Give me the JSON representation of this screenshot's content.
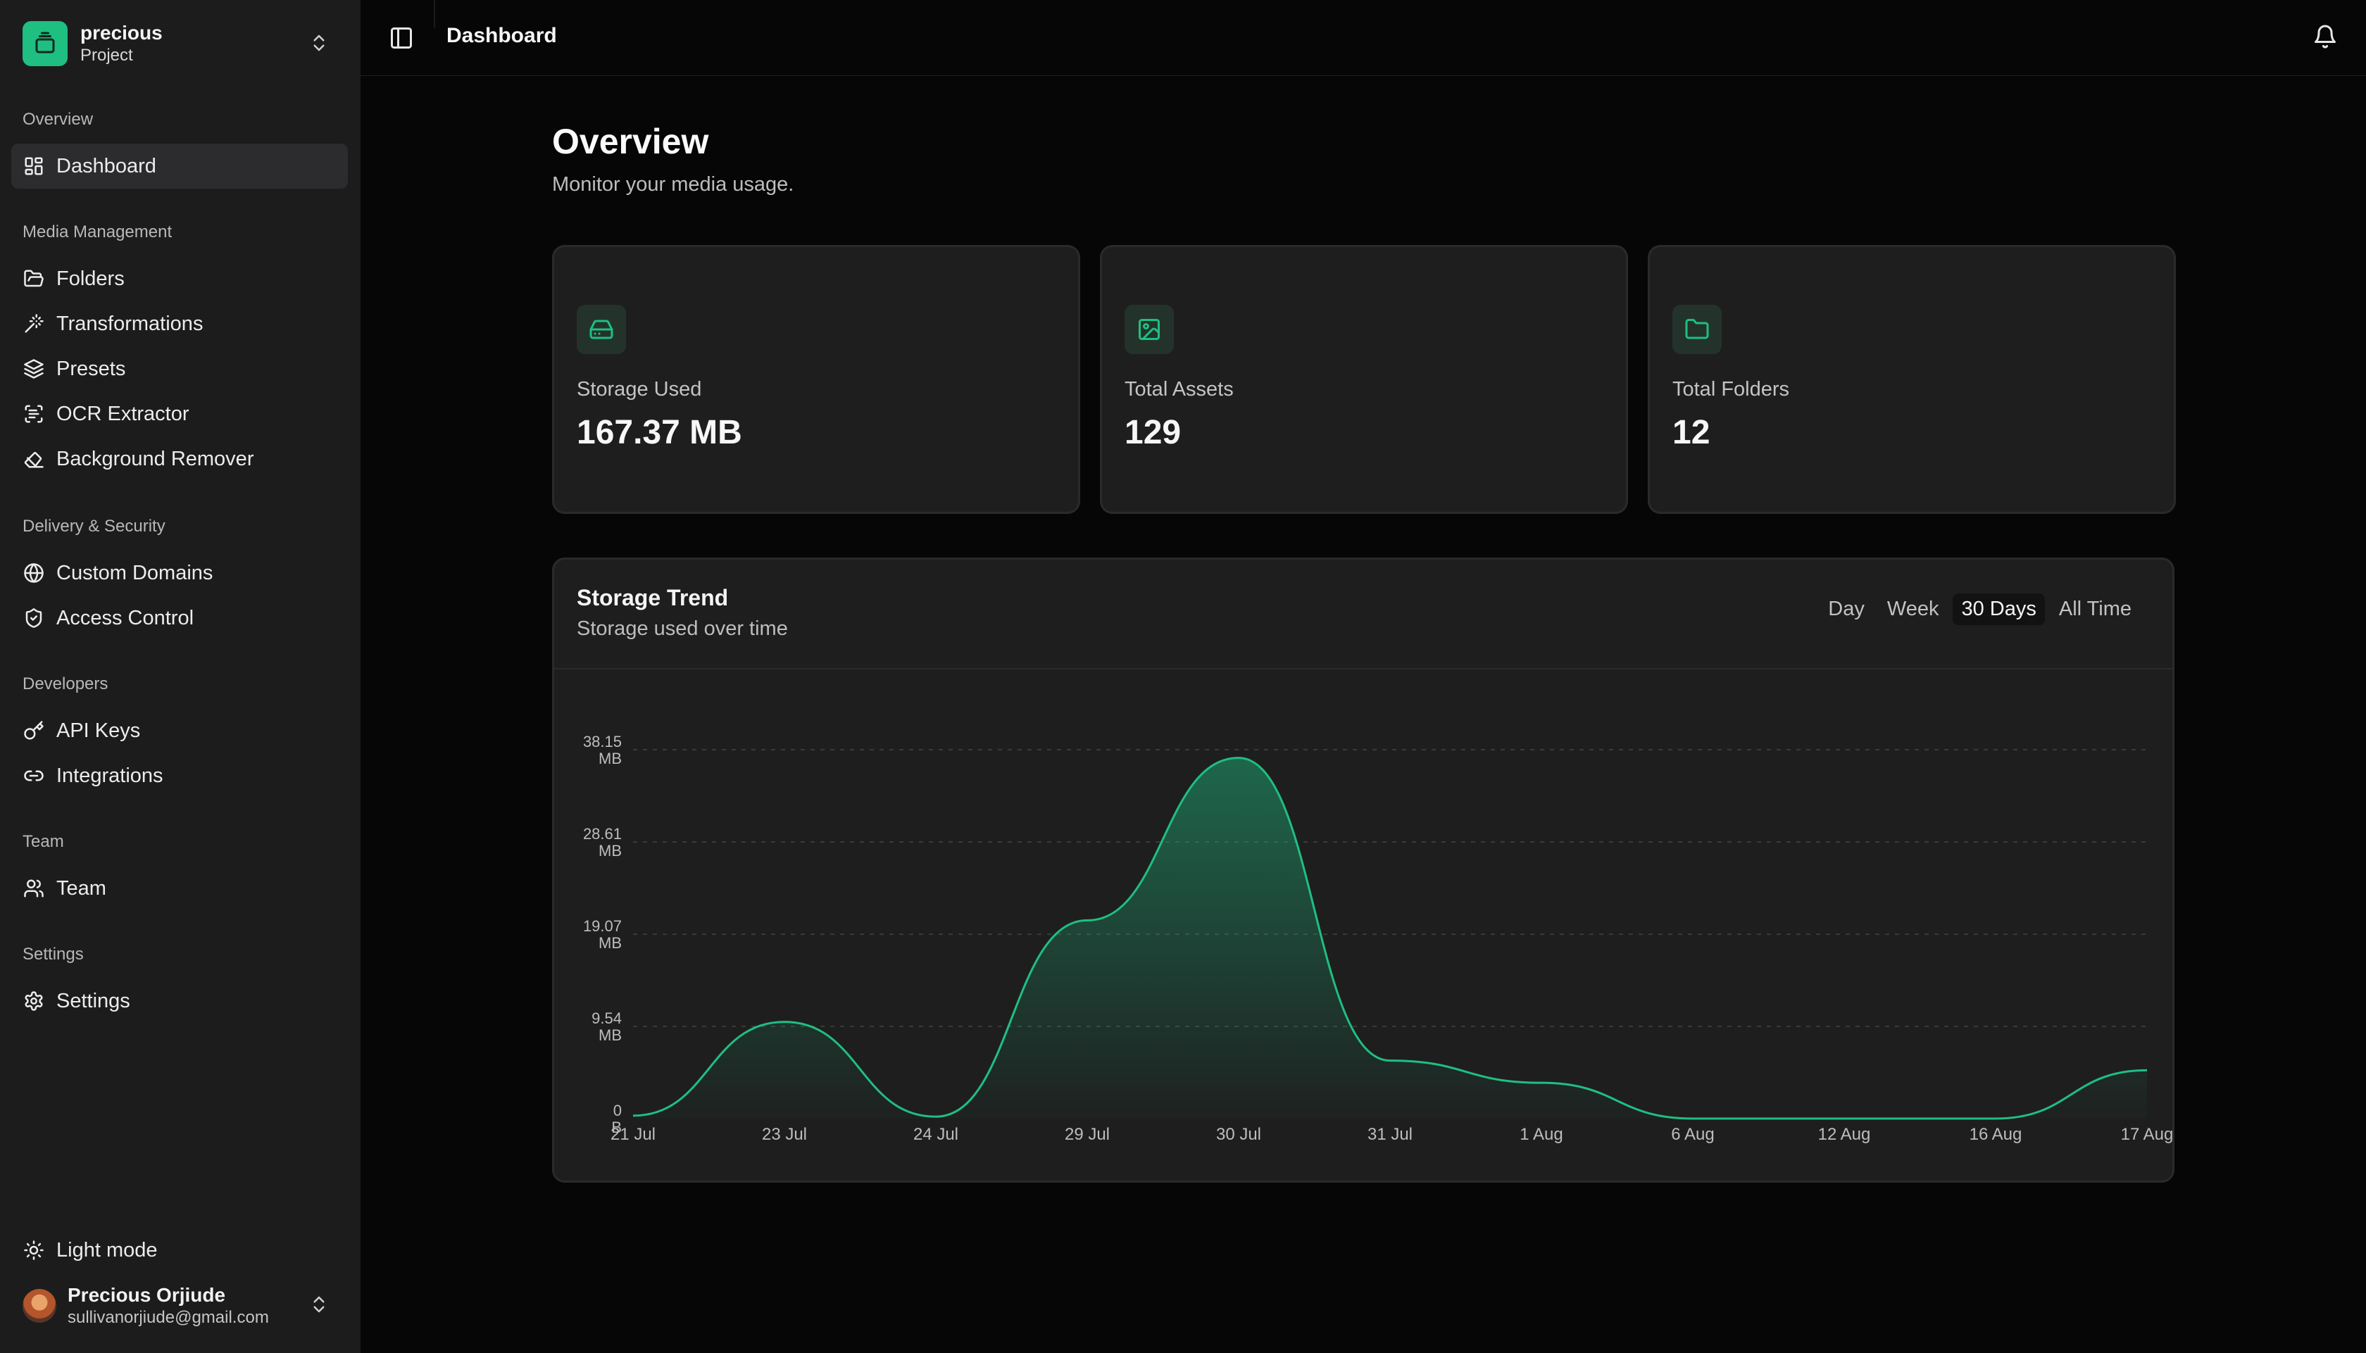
{
  "brand": {
    "name": "precious",
    "subtitle": "Project"
  },
  "topbar": {
    "title": "Dashboard"
  },
  "sidebar": {
    "sections": [
      {
        "label": "Overview",
        "items": [
          {
            "label": "Dashboard",
            "icon": "dashboard-icon",
            "active": true
          }
        ]
      },
      {
        "label": "Media Management",
        "items": [
          {
            "label": "Folders",
            "icon": "folder-open-icon"
          },
          {
            "label": "Transformations",
            "icon": "magic-wand-icon"
          },
          {
            "label": "Presets",
            "icon": "layers-icon"
          },
          {
            "label": "OCR Extractor",
            "icon": "scan-text-icon"
          },
          {
            "label": "Background Remover",
            "icon": "eraser-icon"
          }
        ]
      },
      {
        "label": "Delivery & Security",
        "items": [
          {
            "label": "Custom Domains",
            "icon": "globe-icon"
          },
          {
            "label": "Access Control",
            "icon": "shield-check-icon"
          }
        ]
      },
      {
        "label": "Developers",
        "items": [
          {
            "label": "API Keys",
            "icon": "key-icon"
          },
          {
            "label": "Integrations",
            "icon": "link-icon"
          }
        ]
      },
      {
        "label": "Team",
        "items": [
          {
            "label": "Team",
            "icon": "users-icon"
          }
        ]
      },
      {
        "label": "Settings",
        "items": [
          {
            "label": "Settings",
            "icon": "gear-icon"
          }
        ]
      }
    ],
    "theme_toggle": "Light mode",
    "user": {
      "name": "Precious Orjiude",
      "email": "sullivanorjiude@gmail.com"
    }
  },
  "main": {
    "title": "Overview",
    "subtitle": "Monitor your media usage.",
    "stats": [
      {
        "label": "Storage Used",
        "value": "167.37 MB",
        "icon": "hard-drive-icon"
      },
      {
        "label": "Total Assets",
        "value": "129",
        "icon": "image-icon"
      },
      {
        "label": "Total Folders",
        "value": "12",
        "icon": "folder-icon"
      }
    ],
    "chart": {
      "title": "Storage Trend",
      "subtitle": "Storage used over time",
      "ranges": [
        "Day",
        "Week",
        "30 Days",
        "All Time"
      ],
      "active_range": "30 Days"
    }
  },
  "colors": {
    "accent": "#1fbf82",
    "background": "#060606",
    "card": "#1e1e1f",
    "sidebar": "#1c1c1d"
  },
  "chart_data": {
    "type": "area",
    "title": "Storage Trend",
    "subtitle": "Storage used over time",
    "categories": [
      "21 Jul",
      "23 Jul",
      "24 Jul",
      "29 Jul",
      "30 Jul",
      "31 Jul",
      "1 Aug",
      "6 Aug",
      "12 Aug",
      "16 Aug",
      "17 Aug"
    ],
    "values": [
      0.3,
      10.0,
      0.2,
      20.5,
      37.3,
      6.0,
      3.7,
      0.0,
      0.0,
      0.0,
      5.0
    ],
    "unit": "MB",
    "y_ticks": [
      {
        "value": 0,
        "label": "0 B"
      },
      {
        "value": 9.54,
        "label": "9.54 MB"
      },
      {
        "value": 19.07,
        "label": "19.07 MB"
      },
      {
        "value": 28.61,
        "label": "28.61 MB"
      },
      {
        "value": 38.15,
        "label": "38.15 MB"
      }
    ],
    "ylim": [
      0,
      38.15
    ],
    "grid": true,
    "color": "#1fbf82"
  }
}
